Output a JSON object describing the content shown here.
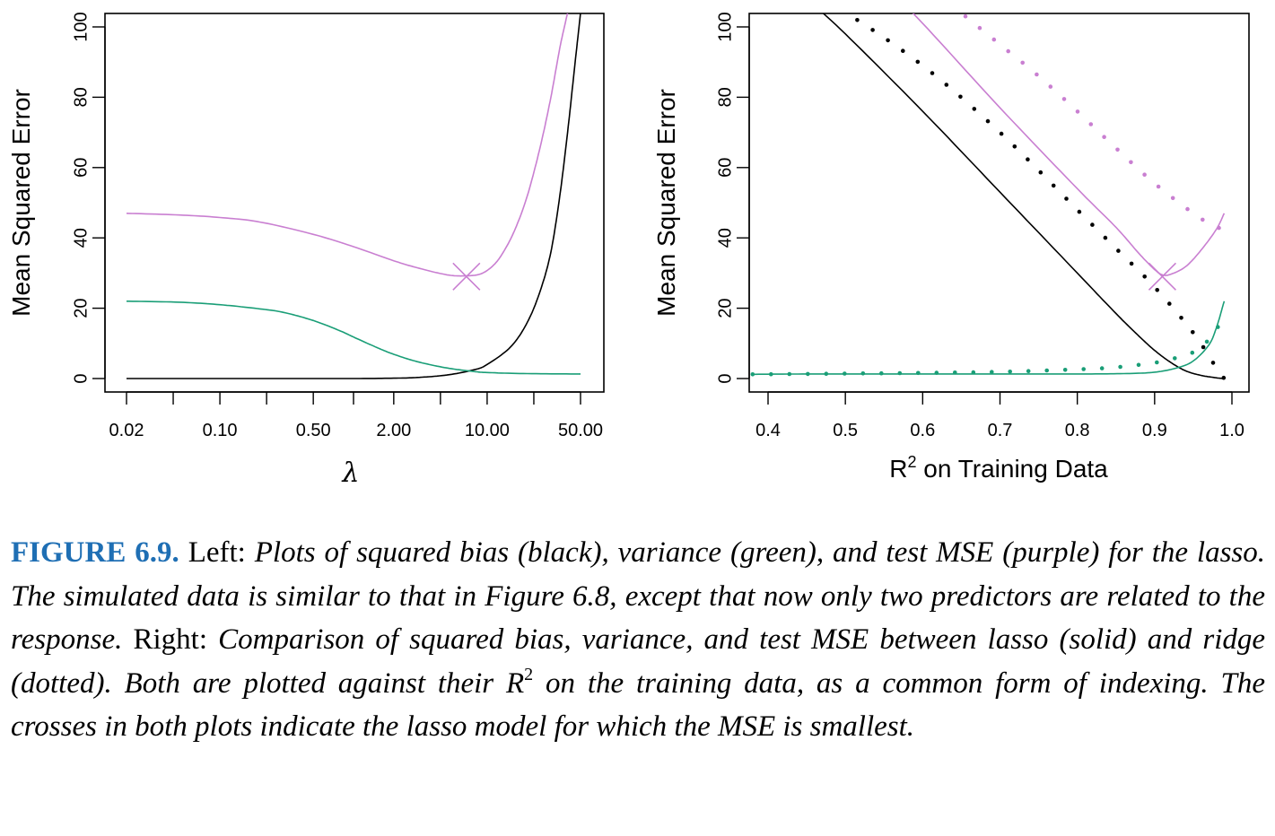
{
  "figure": {
    "colors": {
      "bias": "#000000",
      "variance": "#1a9e77",
      "test_mse": "#c97fd1"
    }
  },
  "chart_data": [
    {
      "type": "line",
      "xlabel": "λ",
      "ylabel": "Mean Squared Error",
      "x_scale": "log",
      "x_ticks": [
        "0.02",
        "0.10",
        "0.50",
        "2.00",
        "10.00",
        "50.00"
      ],
      "y_ticks": [
        "0",
        "20",
        "40",
        "60",
        "80",
        "100"
      ],
      "ylim": [
        0,
        100
      ],
      "series": [
        {
          "color": "#000000",
          "style": "solid",
          "x": [
            0.02,
            0.1,
            0.5,
            1,
            2,
            3,
            5,
            8,
            10,
            15,
            20,
            25,
            30,
            35,
            40,
            45,
            50
          ],
          "y": [
            0,
            0,
            0,
            0,
            0.1,
            0.3,
            1,
            2.5,
            4,
            9,
            16,
            25,
            36,
            52,
            70,
            88,
            104
          ]
        },
        {
          "color": "#1a9e77",
          "style": "solid",
          "x": [
            0.02,
            0.05,
            0.1,
            0.2,
            0.3,
            0.5,
            0.8,
            1,
            1.5,
            2,
            3,
            5,
            8,
            10,
            20,
            50
          ],
          "y": [
            22,
            21.7,
            21,
            19.8,
            18.8,
            16.5,
            13.5,
            11.8,
            8.8,
            6.9,
            4.8,
            3,
            2,
            1.7,
            1.4,
            1.3
          ]
        },
        {
          "color": "#c97fd1",
          "style": "solid",
          "x": [
            0.02,
            0.05,
            0.1,
            0.2,
            0.5,
            1,
            2,
            3,
            5,
            7,
            9,
            11,
            13,
            16,
            20,
            25,
            30,
            35,
            40
          ],
          "y": [
            47,
            46.5,
            45.8,
            44.5,
            41,
            37.5,
            33.5,
            31.5,
            29.5,
            29.2,
            29.8,
            32,
            35.5,
            42,
            52,
            66,
            80,
            94,
            104
          ]
        }
      ],
      "marker": {
        "x": 7,
        "y": 29,
        "symbol": "cross",
        "color": "#c97fd1"
      }
    },
    {
      "type": "line",
      "xlabel": "R2 on Training Data",
      "ylabel": "Mean Squared Error",
      "x_ticks": [
        "0.4",
        "0.5",
        "0.6",
        "0.7",
        "0.8",
        "0.9",
        "1.0"
      ],
      "y_ticks": [
        "0",
        "20",
        "40",
        "60",
        "80",
        "100"
      ],
      "xlim": [
        0.375,
        1.0
      ],
      "ylim": [
        0,
        100
      ],
      "series": [
        {
          "color": "#000000",
          "style": "solid",
          "x": [
            0.45,
            0.5,
            0.6,
            0.7,
            0.8,
            0.85,
            0.88,
            0.9,
            0.92,
            0.94,
            0.96,
            0.98,
            0.99
          ],
          "y": [
            108,
            98,
            76,
            53,
            30,
            18.5,
            12,
            8,
            4.7,
            2.2,
            0.9,
            0.2,
            0
          ]
        },
        {
          "color": "#000000",
          "style": "dotted",
          "x": [
            0.45,
            0.5,
            0.6,
            0.7,
            0.8,
            0.85,
            0.9,
            0.95,
            0.98,
            0.99
          ],
          "y": [
            108,
            104,
            89,
            70,
            48,
            37,
            26,
            13,
            3,
            0
          ]
        },
        {
          "color": "#1a9e77",
          "style": "solid",
          "x": [
            0.38,
            0.45,
            0.5,
            0.6,
            0.7,
            0.8,
            0.86,
            0.9,
            0.93,
            0.95,
            0.97,
            0.98,
            0.99
          ],
          "y": [
            1.2,
            1.3,
            1.3,
            1.3,
            1.3,
            1.3,
            1.4,
            1.8,
            3.1,
            5,
            9.5,
            14.5,
            22
          ]
        },
        {
          "color": "#1a9e77",
          "style": "dotted",
          "x": [
            0.38,
            0.45,
            0.5,
            0.6,
            0.7,
            0.8,
            0.85,
            0.9,
            0.93,
            0.95,
            0.97,
            0.98,
            0.99
          ],
          "y": [
            1.2,
            1.3,
            1.4,
            1.6,
            1.9,
            2.6,
            3.2,
            4.5,
            6,
            7.5,
            11,
            14,
            18
          ]
        },
        {
          "color": "#c97fd1",
          "style": "solid",
          "x": [
            0.55,
            0.6,
            0.7,
            0.8,
            0.85,
            0.88,
            0.9,
            0.91,
            0.92,
            0.94,
            0.96,
            0.98,
            0.99
          ],
          "y": [
            112,
            101,
            77,
            54,
            43,
            35.5,
            31,
            29.5,
            29.6,
            31.8,
            36.5,
            42.5,
            47
          ]
        },
        {
          "color": "#c97fd1",
          "style": "dotted",
          "x": [
            0.62,
            0.65,
            0.7,
            0.75,
            0.8,
            0.85,
            0.9,
            0.95,
            0.98,
            0.99
          ],
          "y": [
            110,
            104,
            95,
            86,
            76,
            65.5,
            55.5,
            47,
            43,
            43.5
          ]
        }
      ],
      "marker": {
        "x": 0.91,
        "y": 29,
        "symbol": "cross",
        "color": "#c97fd1"
      }
    }
  ],
  "caption": {
    "label": "FIGURE 6.9.",
    "left_word": "Left:",
    "left_text": "Plots of squared bias (black), variance (green), and test MSE (purple) for the lasso. The simulated data is similar to that in Figure 6.8, except that now only two predictors are related to the response.",
    "right_word": "Right:",
    "right_text_1": "Comparison of squared bias, variance, and test MSE between lasso (solid) and ridge (dotted). Both are plotted against their R",
    "right_text_sup": "2",
    "right_text_2": "on the training data, as a common form of indexing. The crosses in both plots indicate the lasso model for which the MSE is smallest."
  }
}
